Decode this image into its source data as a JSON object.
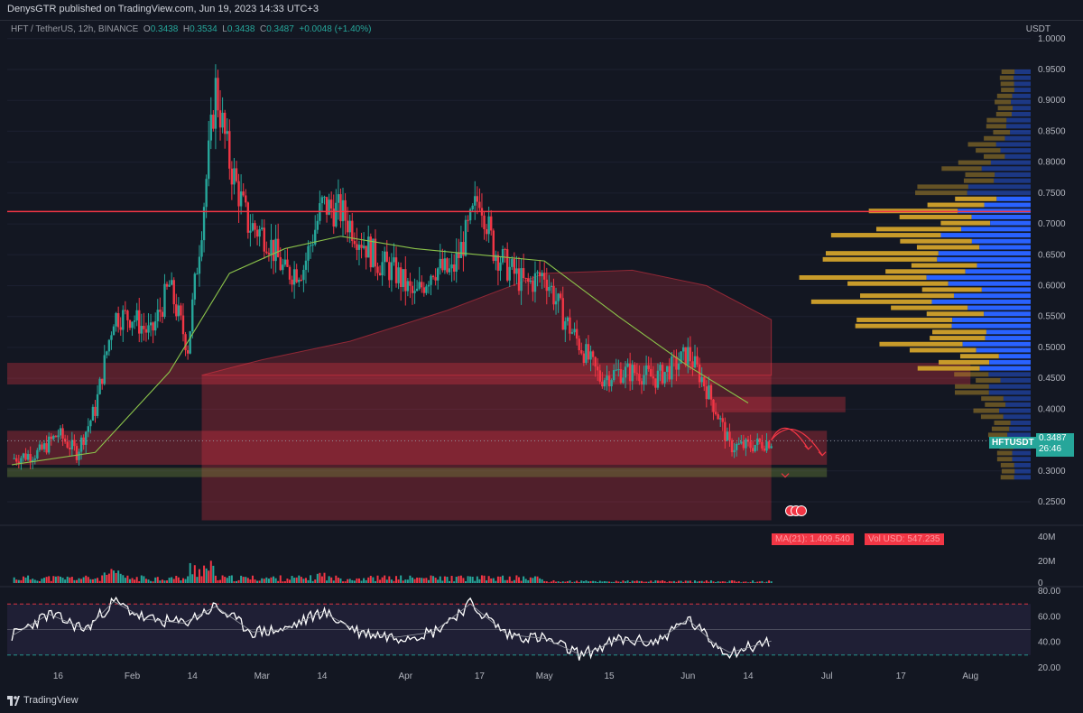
{
  "header": {
    "publisher": "DenysGTR published on TradingView.com, Jun 19, 2023 14:33 UTC+3"
  },
  "legend": {
    "symbol": "HFT / TetherUS, 12h, BINANCE",
    "open_label": "O",
    "open": "0.3438",
    "high_label": "H",
    "high": "0.3534",
    "low_label": "L",
    "low": "0.3438",
    "close_label": "C",
    "close": "0.3487",
    "change": "+0.0048 (+1.40%)"
  },
  "price_axis": {
    "currency": "USDT",
    "ticks": [
      "1.0000",
      "0.9500",
      "0.9000",
      "0.8500",
      "0.8000",
      "0.7500",
      "0.7000",
      "0.6500",
      "0.6000",
      "0.5500",
      "0.5000",
      "0.4500",
      "0.4000",
      "0.3500",
      "0.3000",
      "0.2500"
    ]
  },
  "last_price": {
    "ticker": "HFTUSDT",
    "price": "0.3487",
    "countdown": "26:46"
  },
  "volume_info": {
    "ma": "MA(21): 1.409.540",
    "vol": "Vol USD: 547.235"
  },
  "volume_axis": {
    "ticks": [
      "40M",
      "20M",
      "0"
    ]
  },
  "rsi_axis": {
    "ticks": [
      "80.00",
      "60.00",
      "40.00",
      "20.00"
    ]
  },
  "time_axis": {
    "ticks": [
      "16",
      "Feb",
      "14",
      "Mar",
      "14",
      "Apr",
      "17",
      "May",
      "15",
      "Jun",
      "14",
      "Jul",
      "17",
      "Aug"
    ]
  },
  "brand": {
    "name": "TradingView"
  },
  "colors": {
    "up": "#26a69a",
    "down": "#f23645",
    "background": "#131722",
    "resistance": "#f23645",
    "ma_line": "#8bc34a",
    "vp_up": "#c89b2a",
    "vp_down": "#2962ff"
  },
  "chart_data": {
    "type": "candlestick",
    "title": "HFT / TetherUS, 12h, BINANCE",
    "ylabel": "USDT",
    "ylim": [
      0.22,
      1.0
    ],
    "x_range": [
      "2023-01-05",
      "2023-08-14"
    ],
    "resistance_level": 0.72,
    "last_price": 0.3487,
    "close_path": [
      [
        "2023-01-06",
        0.32
      ],
      [
        "2023-01-12",
        0.33
      ],
      [
        "2023-01-16",
        0.36
      ],
      [
        "2023-01-20",
        0.33
      ],
      [
        "2023-01-24",
        0.4
      ],
      [
        "2023-01-28",
        0.55
      ],
      [
        "2023-02-01",
        0.55
      ],
      [
        "2023-02-05",
        0.52
      ],
      [
        "2023-02-09",
        0.6
      ],
      [
        "2023-02-13",
        0.5
      ],
      [
        "2023-02-16",
        0.7
      ],
      [
        "2023-02-19",
        0.92
      ],
      [
        "2023-02-22",
        0.8
      ],
      [
        "2023-02-26",
        0.7
      ],
      [
        "2023-03-02",
        0.68
      ],
      [
        "2023-03-06",
        0.62
      ],
      [
        "2023-03-10",
        0.63
      ],
      [
        "2023-03-14",
        0.73
      ],
      [
        "2023-03-18",
        0.72
      ],
      [
        "2023-03-22",
        0.68
      ],
      [
        "2023-03-26",
        0.64
      ],
      [
        "2023-03-30",
        0.62
      ],
      [
        "2023-04-03",
        0.58
      ],
      [
        "2023-04-07",
        0.63
      ],
      [
        "2023-04-11",
        0.62
      ],
      [
        "2023-04-15",
        0.7
      ],
      [
        "2023-04-17",
        0.75
      ],
      [
        "2023-04-20",
        0.66
      ],
      [
        "2023-04-23",
        0.63
      ],
      [
        "2023-04-27",
        0.6
      ],
      [
        "2023-05-01",
        0.62
      ],
      [
        "2023-05-05",
        0.55
      ],
      [
        "2023-05-09",
        0.5
      ],
      [
        "2023-05-13",
        0.45
      ],
      [
        "2023-05-17",
        0.46
      ],
      [
        "2023-05-21",
        0.46
      ],
      [
        "2023-05-25",
        0.45
      ],
      [
        "2023-05-29",
        0.47
      ],
      [
        "2023-06-01",
        0.49
      ],
      [
        "2023-06-04",
        0.45
      ],
      [
        "2023-06-07",
        0.4
      ],
      [
        "2023-06-10",
        0.34
      ],
      [
        "2023-06-14",
        0.34
      ],
      [
        "2023-06-19",
        0.3487
      ]
    ],
    "ma_path": [
      [
        "2023-01-06",
        0.31
      ],
      [
        "2023-01-24",
        0.33
      ],
      [
        "2023-02-09",
        0.46
      ],
      [
        "2023-02-22",
        0.62
      ],
      [
        "2023-03-06",
        0.66
      ],
      [
        "2023-03-18",
        0.68
      ],
      [
        "2023-04-03",
        0.66
      ],
      [
        "2023-04-17",
        0.65
      ],
      [
        "2023-05-01",
        0.64
      ],
      [
        "2023-05-17",
        0.55
      ],
      [
        "2023-06-01",
        0.47
      ],
      [
        "2023-06-14",
        0.41
      ]
    ],
    "forecast_paths": [
      [
        [
          "2023-06-19",
          0.35
        ],
        [
          "2023-06-22",
          0.395
        ],
        [
          "2023-06-27",
          0.335
        ]
      ],
      [
        [
          "2023-06-19",
          0.35
        ],
        [
          "2023-06-24",
          0.395
        ],
        [
          "2023-06-30",
          0.325
        ]
      ],
      [
        [
          "2023-06-19",
          0.35
        ],
        [
          "2023-06-22",
          0.29
        ]
      ]
    ],
    "volume": {
      "ylim": [
        0,
        50000000
      ],
      "ma21": 1409540,
      "last": 547235
    },
    "rsi": {
      "ylim": [
        20,
        80
      ],
      "bands": [
        30,
        50,
        70
      ],
      "values": [
        [
          "2023-01-06",
          45
        ],
        [
          "2023-01-14",
          62
        ],
        [
          "2023-01-22",
          50
        ],
        [
          "2023-01-28",
          72
        ],
        [
          "2023-02-04",
          58
        ],
        [
          "2023-02-12",
          55
        ],
        [
          "2023-02-19",
          68
        ],
        [
          "2023-02-27",
          48
        ],
        [
          "2023-03-06",
          50
        ],
        [
          "2023-03-14",
          64
        ],
        [
          "2023-03-22",
          48
        ],
        [
          "2023-03-30",
          44
        ],
        [
          "2023-04-07",
          48
        ],
        [
          "2023-04-15",
          70
        ],
        [
          "2023-04-23",
          46
        ],
        [
          "2023-05-01",
          43
        ],
        [
          "2023-05-09",
          30
        ],
        [
          "2023-05-17",
          42
        ],
        [
          "2023-05-25",
          40
        ],
        [
          "2023-06-01",
          58
        ],
        [
          "2023-06-07",
          38
        ],
        [
          "2023-06-10",
          32
        ],
        [
          "2023-06-14",
          36
        ],
        [
          "2023-06-19",
          41
        ]
      ]
    }
  }
}
